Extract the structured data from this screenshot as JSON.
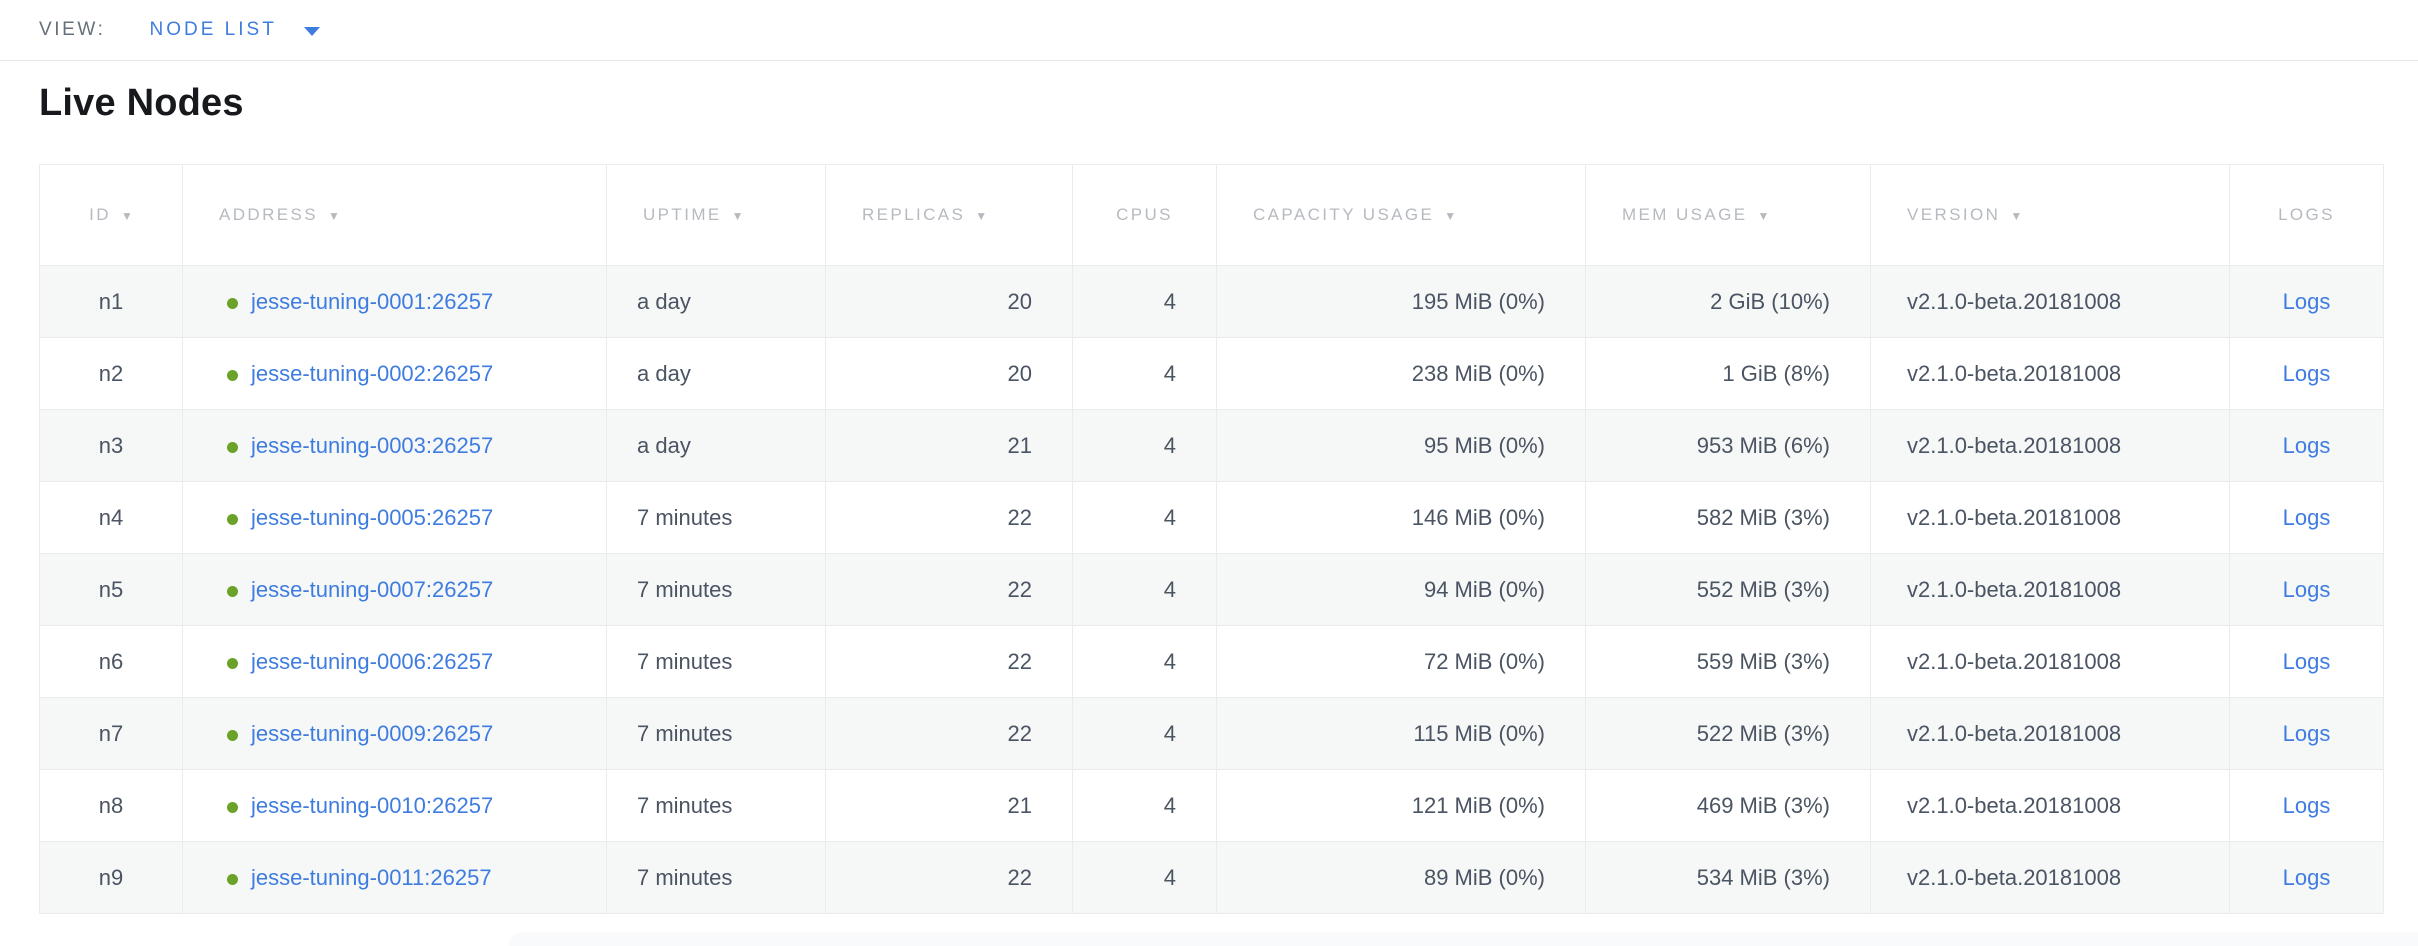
{
  "view_bar": {
    "label": "VIEW:",
    "selected": "NODE LIST"
  },
  "page": {
    "title": "Live Nodes"
  },
  "table": {
    "columns": [
      {
        "id": "id",
        "label": "ID",
        "sortable": true
      },
      {
        "id": "address",
        "label": "ADDRESS",
        "sortable": true
      },
      {
        "id": "uptime",
        "label": "UPTIME",
        "sortable": true
      },
      {
        "id": "replicas",
        "label": "REPLICAS",
        "sortable": true
      },
      {
        "id": "cpus",
        "label": "CPUS",
        "sortable": false
      },
      {
        "id": "capacity",
        "label": "CAPACITY USAGE",
        "sortable": true
      },
      {
        "id": "mem",
        "label": "MEM USAGE",
        "sortable": true
      },
      {
        "id": "version",
        "label": "VERSION",
        "sortable": true
      },
      {
        "id": "logs",
        "label": "LOGS",
        "sortable": false
      }
    ],
    "rows": [
      {
        "id": "n1",
        "address": "jesse-tuning-0001:26257",
        "status": "live",
        "uptime": "a day",
        "replicas": "20",
        "cpus": "4",
        "capacity": "195 MiB (0%)",
        "mem": "2 GiB (10%)",
        "version": "v2.1.0-beta.20181008",
        "logs": "Logs"
      },
      {
        "id": "n2",
        "address": "jesse-tuning-0002:26257",
        "status": "live",
        "uptime": "a day",
        "replicas": "20",
        "cpus": "4",
        "capacity": "238 MiB (0%)",
        "mem": "1 GiB (8%)",
        "version": "v2.1.0-beta.20181008",
        "logs": "Logs"
      },
      {
        "id": "n3",
        "address": "jesse-tuning-0003:26257",
        "status": "live",
        "uptime": "a day",
        "replicas": "21",
        "cpus": "4",
        "capacity": "95 MiB (0%)",
        "mem": "953 MiB (6%)",
        "version": "v2.1.0-beta.20181008",
        "logs": "Logs"
      },
      {
        "id": "n4",
        "address": "jesse-tuning-0005:26257",
        "status": "live",
        "uptime": "7 minutes",
        "replicas": "22",
        "cpus": "4",
        "capacity": "146 MiB (0%)",
        "mem": "582 MiB (3%)",
        "version": "v2.1.0-beta.20181008",
        "logs": "Logs"
      },
      {
        "id": "n5",
        "address": "jesse-tuning-0007:26257",
        "status": "live",
        "uptime": "7 minutes",
        "replicas": "22",
        "cpus": "4",
        "capacity": "94 MiB (0%)",
        "mem": "552 MiB (3%)",
        "version": "v2.1.0-beta.20181008",
        "logs": "Logs"
      },
      {
        "id": "n6",
        "address": "jesse-tuning-0006:26257",
        "status": "live",
        "uptime": "7 minutes",
        "replicas": "22",
        "cpus": "4",
        "capacity": "72 MiB (0%)",
        "mem": "559 MiB (3%)",
        "version": "v2.1.0-beta.20181008",
        "logs": "Logs"
      },
      {
        "id": "n7",
        "address": "jesse-tuning-0009:26257",
        "status": "live",
        "uptime": "7 minutes",
        "replicas": "22",
        "cpus": "4",
        "capacity": "115 MiB (0%)",
        "mem": "522 MiB (3%)",
        "version": "v2.1.0-beta.20181008",
        "logs": "Logs"
      },
      {
        "id": "n8",
        "address": "jesse-tuning-0010:26257",
        "status": "live",
        "uptime": "7 minutes",
        "replicas": "21",
        "cpus": "4",
        "capacity": "121 MiB (0%)",
        "mem": "469 MiB (3%)",
        "version": "v2.1.0-beta.20181008",
        "logs": "Logs"
      },
      {
        "id": "n9",
        "address": "jesse-tuning-0011:26257",
        "status": "live",
        "uptime": "7 minutes",
        "replicas": "22",
        "cpus": "4",
        "capacity": "89 MiB (0%)",
        "mem": "534 MiB (3%)",
        "version": "v2.1.0-beta.20181008",
        "logs": "Logs"
      }
    ]
  },
  "icons": {
    "sort_desc": "▼",
    "caret_down": "▾",
    "live_dot": "●"
  },
  "colors": {
    "link_blue": "#3e7ce0",
    "live_green": "#6ba32a",
    "header_gray": "#b6bac0",
    "row_stripe": "#f6f7f7"
  }
}
